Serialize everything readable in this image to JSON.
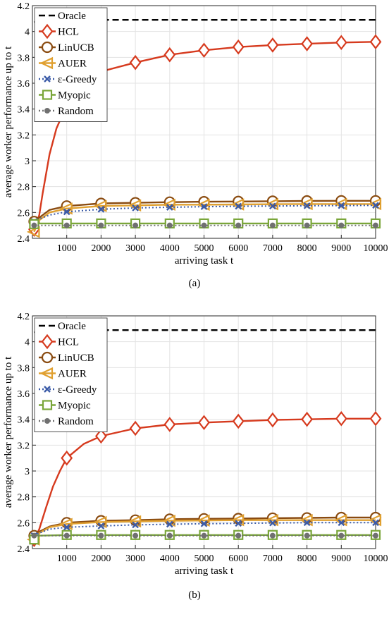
{
  "chart_data": [
    {
      "type": "line",
      "caption": "(a)",
      "xlabel": "arriving task t",
      "ylabel": "average worker performance up to t",
      "xlim": [
        0,
        10000
      ],
      "ylim": [
        2.4,
        4.2
      ],
      "xticks": [
        1000,
        2000,
        3000,
        4000,
        5000,
        6000,
        7000,
        8000,
        9000,
        10000
      ],
      "yticks": [
        2.4,
        2.6,
        2.8,
        3.0,
        3.2,
        3.4,
        3.6,
        3.8,
        4.0,
        4.2
      ],
      "ytick_labels": [
        "2.4",
        "2.6",
        "2.8",
        "3",
        "3.2",
        "3.4",
        "3.6",
        "3.8",
        "4",
        "4.2"
      ],
      "grid": true,
      "legend_position": "top-left",
      "series": [
        {
          "name": "Oracle",
          "color": "#000000",
          "style": "dashed",
          "marker": "none",
          "x": [
            50,
            200,
            1000,
            2000,
            3000,
            4000,
            5000,
            6000,
            7000,
            8000,
            9000,
            10000
          ],
          "y": [
            4.07,
            4.09,
            4.09,
            4.09,
            4.09,
            4.09,
            4.09,
            4.09,
            4.09,
            4.09,
            4.09,
            4.09
          ]
        },
        {
          "name": "HCL",
          "color": "#d63a1e",
          "style": "solid",
          "marker": "diamond",
          "x": [
            50,
            100,
            200,
            300,
            500,
            700,
            1000,
            1500,
            2000,
            3000,
            4000,
            5000,
            6000,
            7000,
            8000,
            9000,
            10000
          ],
          "y": [
            2.47,
            2.5,
            2.58,
            2.75,
            3.05,
            3.25,
            3.43,
            3.6,
            3.69,
            3.76,
            3.82,
            3.855,
            3.88,
            3.895,
            3.905,
            3.915,
            3.92
          ]
        },
        {
          "name": "LinUCB",
          "color": "#8a4b10",
          "style": "solid",
          "marker": "circle",
          "x": [
            50,
            200,
            500,
            1000,
            2000,
            3000,
            4000,
            5000,
            6000,
            7000,
            8000,
            9000,
            10000
          ],
          "y": [
            2.53,
            2.56,
            2.62,
            2.65,
            2.67,
            2.675,
            2.68,
            2.683,
            2.685,
            2.687,
            2.689,
            2.69,
            2.69
          ]
        },
        {
          "name": "AUER",
          "color": "#e0a030",
          "style": "solid",
          "marker": "triangle-left",
          "x": [
            50,
            200,
            500,
            1000,
            2000,
            3000,
            4000,
            5000,
            6000,
            7000,
            8000,
            9000,
            10000
          ],
          "y": [
            2.45,
            2.54,
            2.6,
            2.63,
            2.65,
            2.655,
            2.66,
            2.66,
            2.662,
            2.664,
            2.665,
            2.665,
            2.665
          ]
        },
        {
          "name": "ε-Greedy",
          "color": "#3b5ba8",
          "style": "dotted",
          "marker": "x",
          "x": [
            50,
            200,
            500,
            1000,
            2000,
            3000,
            4000,
            5000,
            6000,
            7000,
            8000,
            9000,
            10000
          ],
          "y": [
            2.53,
            2.55,
            2.58,
            2.605,
            2.625,
            2.635,
            2.64,
            2.645,
            2.648,
            2.65,
            2.652,
            2.653,
            2.655
          ]
        },
        {
          "name": "Myopic",
          "color": "#7aa63a",
          "style": "solid",
          "marker": "square",
          "x": [
            50,
            200,
            1000,
            2000,
            3000,
            4000,
            5000,
            6000,
            7000,
            8000,
            9000,
            10000
          ],
          "y": [
            2.51,
            2.515,
            2.515,
            2.515,
            2.515,
            2.515,
            2.515,
            2.515,
            2.515,
            2.515,
            2.515,
            2.515
          ]
        },
        {
          "name": "Random",
          "color": "#707070",
          "style": "dotted",
          "marker": "dot",
          "x": [
            50,
            200,
            1000,
            2000,
            3000,
            4000,
            5000,
            6000,
            7000,
            8000,
            9000,
            10000
          ],
          "y": [
            2.5,
            2.5,
            2.5,
            2.5,
            2.5,
            2.5,
            2.5,
            2.5,
            2.5,
            2.5,
            2.5,
            2.5
          ]
        }
      ]
    },
    {
      "type": "line",
      "caption": "(b)",
      "xlabel": "arriving task t",
      "ylabel": "average worker performance up to t",
      "xlim": [
        0,
        10000
      ],
      "ylim": [
        2.4,
        4.2
      ],
      "xticks": [
        1000,
        2000,
        3000,
        4000,
        5000,
        6000,
        7000,
        8000,
        9000,
        10000
      ],
      "yticks": [
        2.4,
        2.6,
        2.8,
        3.0,
        3.2,
        3.4,
        3.6,
        3.8,
        4.0,
        4.2
      ],
      "ytick_labels": [
        "2.4",
        "2.6",
        "2.8",
        "3",
        "3.2",
        "3.4",
        "3.6",
        "3.8",
        "4",
        "4.2"
      ],
      "grid": true,
      "legend_position": "top-left",
      "series": [
        {
          "name": "Oracle",
          "color": "#000000",
          "style": "dashed",
          "marker": "none",
          "x": [
            50,
            200,
            1000,
            2000,
            3000,
            4000,
            5000,
            6000,
            7000,
            8000,
            9000,
            10000
          ],
          "y": [
            4.07,
            4.09,
            4.09,
            4.09,
            4.09,
            4.09,
            4.09,
            4.09,
            4.09,
            4.09,
            4.09,
            4.09
          ]
        },
        {
          "name": "HCL",
          "color": "#d63a1e",
          "style": "solid",
          "marker": "diamond",
          "x": [
            50,
            200,
            400,
            600,
            800,
            1000,
            1500,
            2000,
            3000,
            4000,
            5000,
            6000,
            7000,
            8000,
            9000,
            10000
          ],
          "y": [
            2.47,
            2.55,
            2.72,
            2.88,
            3.0,
            3.1,
            3.21,
            3.27,
            3.33,
            3.36,
            3.375,
            3.385,
            3.395,
            3.4,
            3.405,
            3.405
          ]
        },
        {
          "name": "LinUCB",
          "color": "#8a4b10",
          "style": "solid",
          "marker": "circle",
          "x": [
            50,
            200,
            500,
            1000,
            2000,
            3000,
            4000,
            5000,
            6000,
            7000,
            8000,
            9000,
            10000
          ],
          "y": [
            2.5,
            2.53,
            2.57,
            2.6,
            2.615,
            2.62,
            2.627,
            2.63,
            2.632,
            2.635,
            2.637,
            2.64,
            2.64
          ]
        },
        {
          "name": "AUER",
          "color": "#e0a030",
          "style": "solid",
          "marker": "triangle-left",
          "x": [
            50,
            200,
            500,
            1000,
            2000,
            3000,
            4000,
            5000,
            6000,
            7000,
            8000,
            9000,
            10000
          ],
          "y": [
            2.47,
            2.52,
            2.565,
            2.59,
            2.605,
            2.61,
            2.615,
            2.617,
            2.62,
            2.62,
            2.62,
            2.62,
            2.62
          ]
        },
        {
          "name": "ε-Greedy",
          "color": "#3b5ba8",
          "style": "dotted",
          "marker": "x",
          "x": [
            50,
            200,
            500,
            1000,
            2000,
            3000,
            4000,
            5000,
            6000,
            7000,
            8000,
            9000,
            10000
          ],
          "y": [
            2.5,
            2.52,
            2.55,
            2.565,
            2.575,
            2.583,
            2.588,
            2.592,
            2.595,
            2.598,
            2.6,
            2.6,
            2.6
          ]
        },
        {
          "name": "Myopic",
          "color": "#7aa63a",
          "style": "solid",
          "marker": "square",
          "x": [
            50,
            200,
            1000,
            2000,
            3000,
            4000,
            5000,
            6000,
            7000,
            8000,
            9000,
            10000
          ],
          "y": [
            2.47,
            2.5,
            2.505,
            2.505,
            2.505,
            2.505,
            2.505,
            2.505,
            2.505,
            2.505,
            2.505,
            2.505
          ]
        },
        {
          "name": "Random",
          "color": "#707070",
          "style": "dotted",
          "marker": "dot",
          "x": [
            50,
            200,
            1000,
            2000,
            3000,
            4000,
            5000,
            6000,
            7000,
            8000,
            9000,
            10000
          ],
          "y": [
            2.5,
            2.5,
            2.5,
            2.5,
            2.5,
            2.5,
            2.5,
            2.5,
            2.5,
            2.5,
            2.5,
            2.5
          ]
        }
      ]
    }
  ]
}
